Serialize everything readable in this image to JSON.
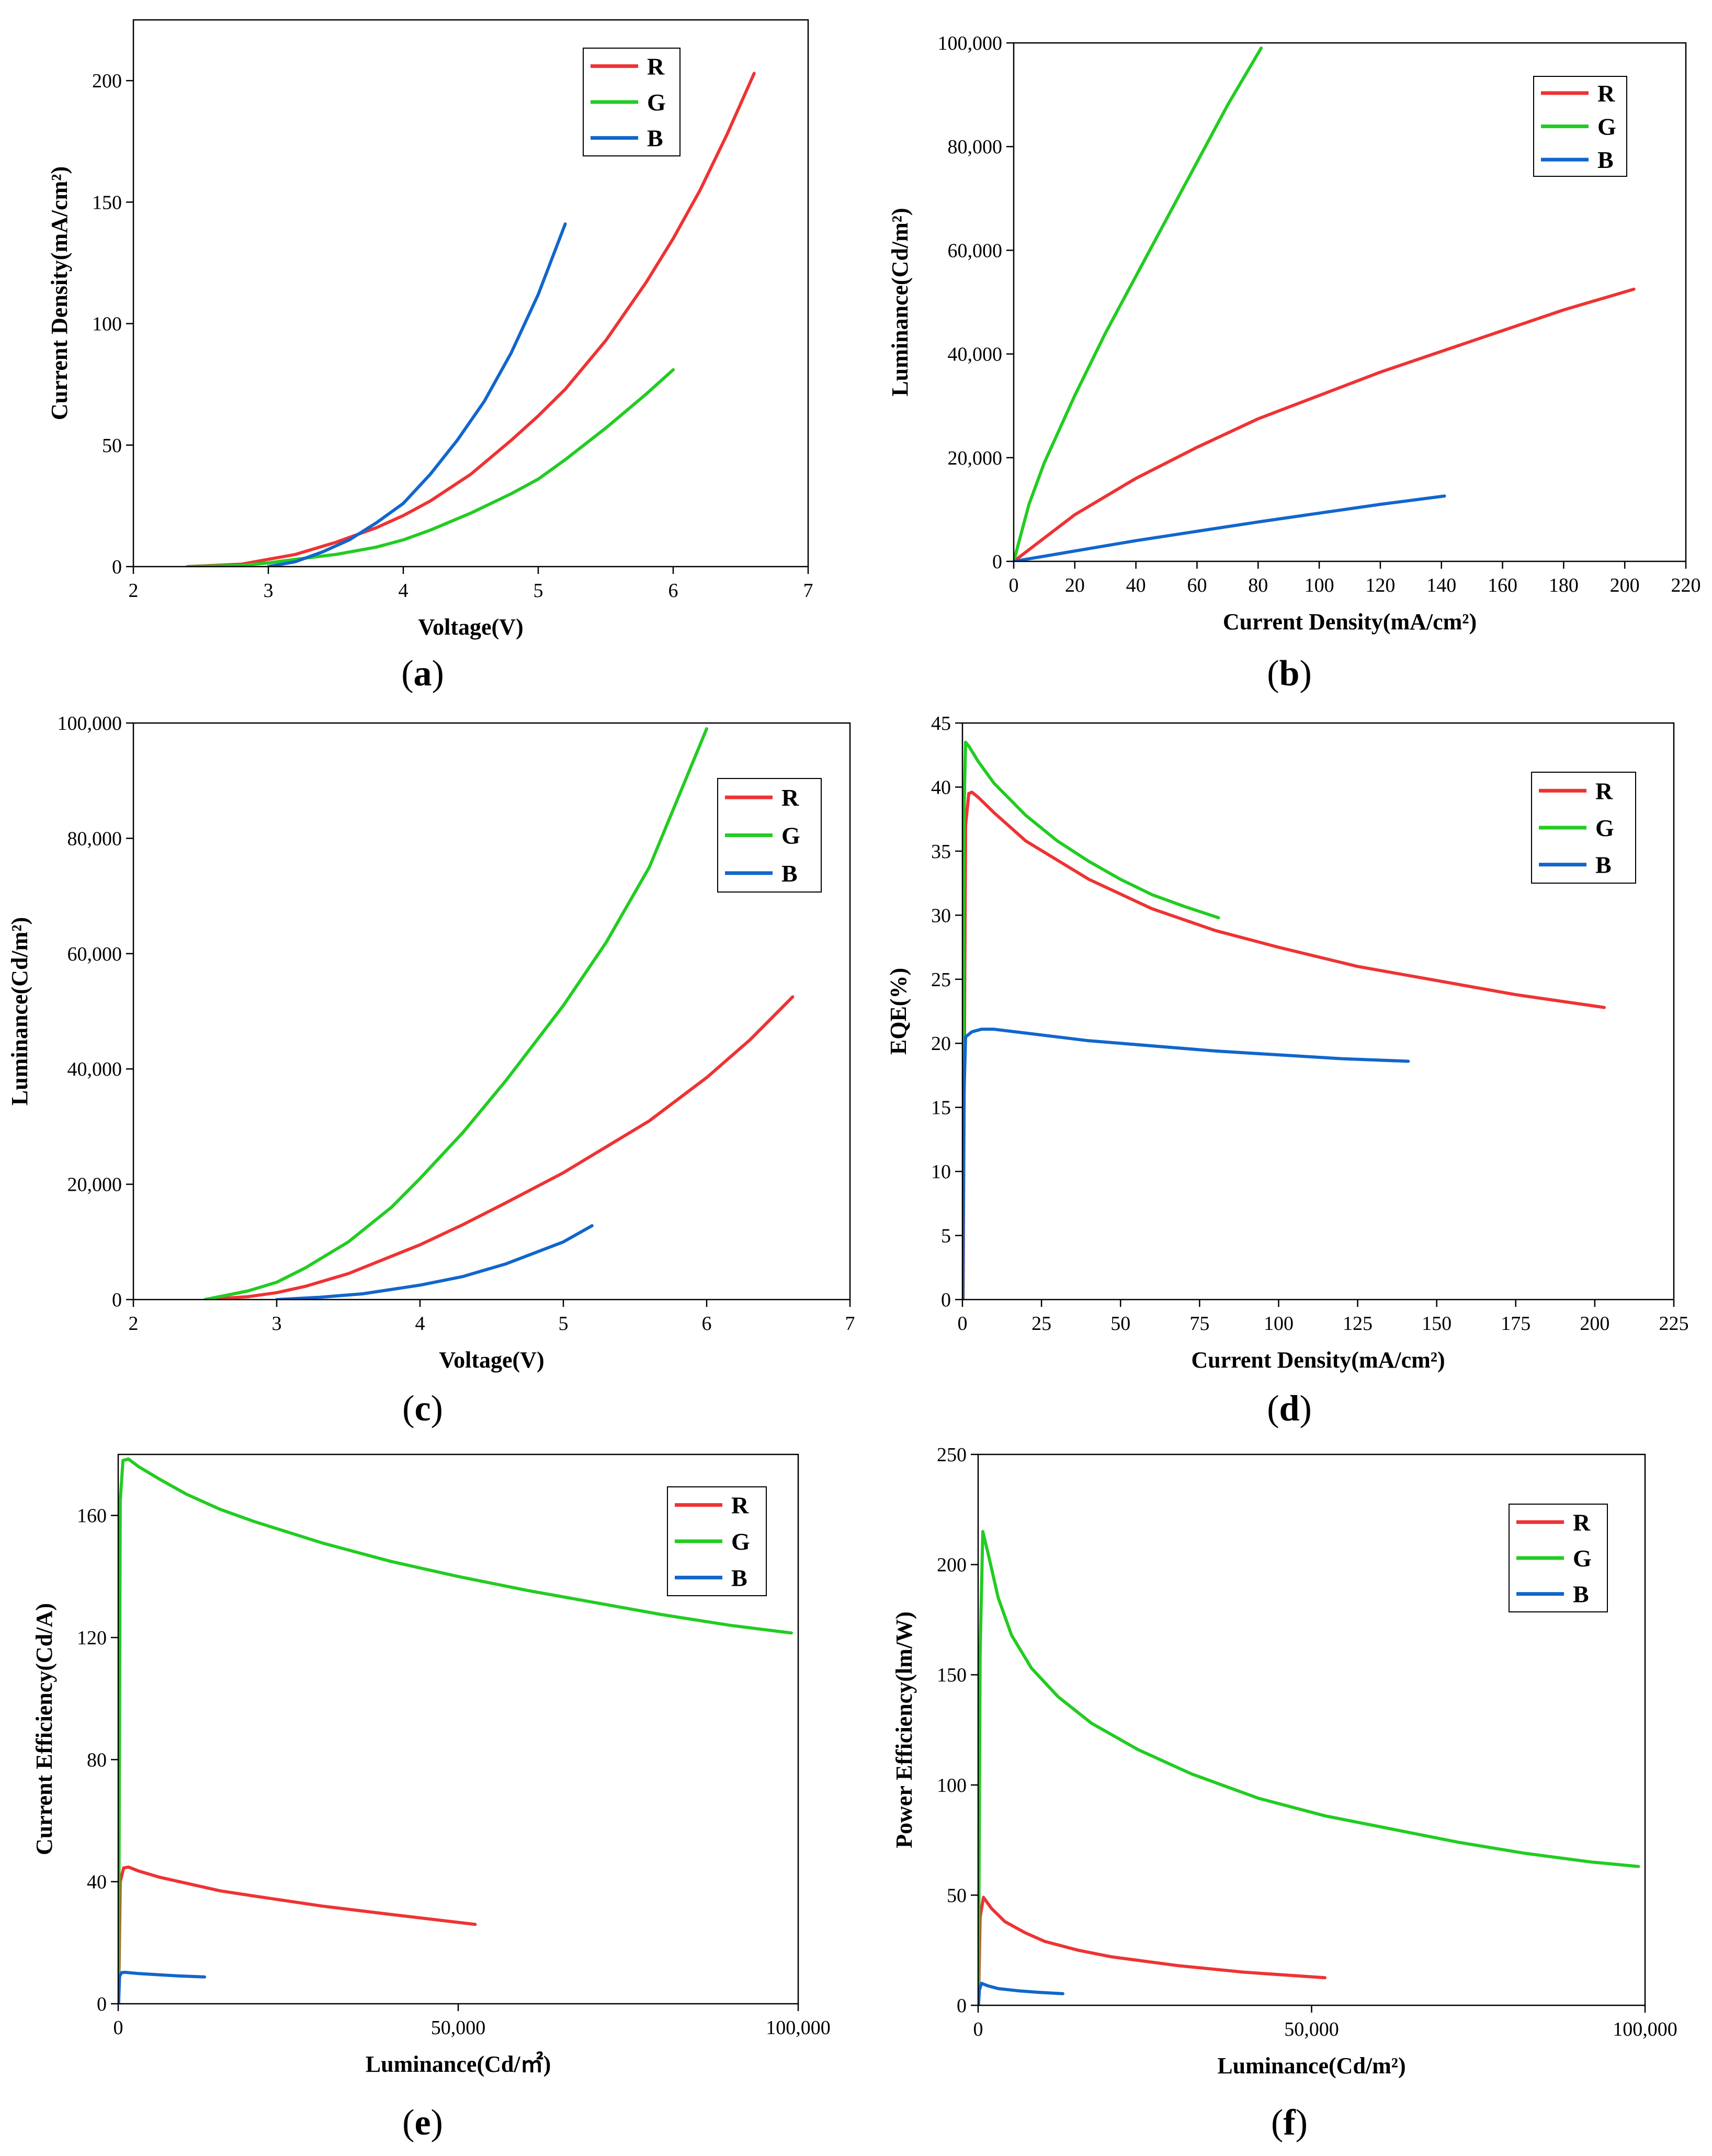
{
  "series_colors": {
    "R": "#ee3333",
    "G": "#22cc22",
    "B": "#1166cc"
  },
  "chart_data": [
    {
      "id": "a",
      "type": "line",
      "panel_label": "a",
      "xlabel": "Voltage(V)",
      "ylabel": "Current Density(mA/cm²)",
      "xlim": [
        2,
        7
      ],
      "ylim": [
        0,
        225
      ],
      "xticks": [
        2,
        3,
        4,
        5,
        6,
        7
      ],
      "xtick_labels": [
        "2",
        "3",
        "4",
        "5",
        "6",
        "7"
      ],
      "yticks": [
        0,
        50,
        100,
        150,
        200
      ],
      "ytick_labels": [
        "0",
        "50",
        "100",
        "150",
        "200"
      ],
      "legend": [
        "R",
        "G",
        "B"
      ],
      "series": [
        {
          "name": "R",
          "x": [
            2.4,
            2.8,
            3.0,
            3.2,
            3.5,
            3.8,
            4.0,
            4.2,
            4.5,
            4.8,
            5.0,
            5.2,
            5.5,
            5.8,
            6.0,
            6.2,
            6.4,
            6.6
          ],
          "y": [
            0,
            1,
            3,
            5,
            10,
            16,
            21,
            27,
            38,
            52,
            62,
            73,
            93,
            117,
            135,
            155,
            178,
            203
          ]
        },
        {
          "name": "G",
          "x": [
            2.4,
            2.8,
            3.0,
            3.2,
            3.5,
            3.8,
            4.0,
            4.2,
            4.5,
            4.8,
            5.0,
            5.2,
            5.5,
            5.8,
            6.0
          ],
          "y": [
            0,
            0.5,
            1.5,
            3,
            5,
            8,
            11,
            15,
            22,
            30,
            36,
            44,
            57,
            71,
            81
          ]
        },
        {
          "name": "B",
          "x": [
            3.0,
            3.2,
            3.4,
            3.6,
            3.8,
            4.0,
            4.2,
            4.4,
            4.6,
            4.8,
            5.0,
            5.2
          ],
          "y": [
            0,
            2,
            6,
            11,
            18,
            26,
            38,
            52,
            68,
            88,
            112,
            141
          ]
        }
      ]
    },
    {
      "id": "b",
      "type": "line",
      "panel_label": "b",
      "xlabel": "Current Density(mA/cm²)",
      "ylabel": "Luminance(Cd/m²)",
      "xlim": [
        0,
        220
      ],
      "ylim": [
        0,
        100000
      ],
      "xticks": [
        0,
        20,
        40,
        60,
        80,
        100,
        120,
        140,
        160,
        180,
        200,
        220
      ],
      "xtick_labels": [
        "0",
        "20",
        "40",
        "60",
        "80",
        "100",
        "120",
        "140",
        "160",
        "180",
        "200",
        "220"
      ],
      "yticks": [
        0,
        20000,
        40000,
        60000,
        80000,
        100000
      ],
      "ytick_labels": [
        "0",
        "20,000",
        "40,000",
        "60,000",
        "80,000",
        "100,000"
      ],
      "legend": [
        "R",
        "G",
        "B"
      ],
      "series": [
        {
          "name": "R",
          "x": [
            0,
            10,
            20,
            40,
            60,
            80,
            100,
            120,
            140,
            160,
            180,
            203
          ],
          "y": [
            0,
            4500,
            9000,
            16000,
            22000,
            27500,
            32000,
            36500,
            40500,
            44500,
            48500,
            52500
          ]
        },
        {
          "name": "G",
          "x": [
            0,
            5,
            10,
            20,
            30,
            40,
            50,
            60,
            70,
            81
          ],
          "y": [
            0,
            11000,
            19000,
            32000,
            44000,
            55000,
            66000,
            77000,
            88000,
            99000
          ]
        },
        {
          "name": "B",
          "x": [
            0,
            20,
            40,
            60,
            80,
            100,
            120,
            141
          ],
          "y": [
            0,
            2000,
            4000,
            5800,
            7600,
            9300,
            11000,
            12600
          ]
        }
      ]
    },
    {
      "id": "c",
      "type": "line",
      "panel_label": "c",
      "xlabel": "Voltage(V)",
      "ylabel": "Luminance(Cd/m²)",
      "xlim": [
        2,
        7
      ],
      "ylim": [
        0,
        100000
      ],
      "xticks": [
        2,
        3,
        4,
        5,
        6,
        7
      ],
      "xtick_labels": [
        "2",
        "3",
        "4",
        "5",
        "6",
        "7"
      ],
      "yticks": [
        0,
        20000,
        40000,
        60000,
        80000,
        100000
      ],
      "ytick_labels": [
        "0",
        "20,000",
        "40,000",
        "60,000",
        "80,000",
        "100,000"
      ],
      "legend": [
        "R",
        "G",
        "B"
      ],
      "series": [
        {
          "name": "R",
          "x": [
            2.5,
            2.8,
            3.0,
            3.2,
            3.5,
            3.8,
            4.0,
            4.3,
            4.6,
            5.0,
            5.3,
            5.6,
            6.0,
            6.3,
            6.6
          ],
          "y": [
            0,
            500,
            1200,
            2300,
            4500,
            7500,
            9500,
            13000,
            16800,
            22000,
            26500,
            31000,
            38500,
            45000,
            52500
          ]
        },
        {
          "name": "G",
          "x": [
            2.5,
            2.8,
            3.0,
            3.2,
            3.5,
            3.8,
            4.0,
            4.3,
            4.6,
            5.0,
            5.3,
            5.6,
            6.0
          ],
          "y": [
            0,
            1500,
            3000,
            5500,
            10000,
            16000,
            21000,
            29000,
            38000,
            51000,
            62000,
            75000,
            99000
          ]
        },
        {
          "name": "B",
          "x": [
            3.0,
            3.3,
            3.6,
            4.0,
            4.3,
            4.6,
            5.0,
            5.2
          ],
          "y": [
            0,
            400,
            1000,
            2500,
            4000,
            6200,
            10000,
            12800
          ]
        }
      ]
    },
    {
      "id": "d",
      "type": "line",
      "panel_label": "d",
      "xlabel": "Current Density(mA/cm²)",
      "ylabel": "EQE(%)",
      "xlim": [
        0,
        225
      ],
      "ylim": [
        0,
        45
      ],
      "xticks": [
        0,
        25,
        50,
        75,
        100,
        125,
        150,
        175,
        200,
        225
      ],
      "xtick_labels": [
        "0",
        "25",
        "50",
        "75",
        "100",
        "125",
        "150",
        "175",
        "200",
        "225"
      ],
      "yticks": [
        0,
        5,
        10,
        15,
        20,
        25,
        30,
        35,
        40,
        45
      ],
      "ytick_labels": [
        "0",
        "5",
        "10",
        "15",
        "20",
        "25",
        "30",
        "35",
        "40",
        "45"
      ],
      "legend": [
        "R",
        "G",
        "B"
      ],
      "series": [
        {
          "name": "R",
          "x": [
            0.2,
            1,
            2,
            3,
            5,
            10,
            20,
            40,
            60,
            80,
            100,
            125,
            150,
            175,
            203
          ],
          "y": [
            0,
            37,
            39.5,
            39.6,
            39.2,
            38,
            35.8,
            32.8,
            30.5,
            28.8,
            27.5,
            26,
            24.9,
            23.8,
            22.8
          ]
        },
        {
          "name": "G",
          "x": [
            0.1,
            0.5,
            1,
            2,
            5,
            10,
            20,
            30,
            40,
            50,
            60,
            70,
            81
          ],
          "y": [
            0,
            38,
            43.5,
            43.2,
            42,
            40.3,
            37.8,
            35.8,
            34.2,
            32.8,
            31.6,
            30.7,
            29.8
          ]
        },
        {
          "name": "B",
          "x": [
            0.1,
            0.5,
            1,
            3,
            6,
            10,
            20,
            40,
            60,
            80,
            100,
            120,
            141
          ],
          "y": [
            0,
            16,
            20.5,
            20.9,
            21.1,
            21.1,
            20.8,
            20.2,
            19.8,
            19.4,
            19.1,
            18.8,
            18.6
          ]
        }
      ]
    },
    {
      "id": "e",
      "type": "line",
      "panel_label": "e",
      "xlabel": "Luminance(Cd/㎡)",
      "ylabel": "Current Efficiency(Cd/A)",
      "xlim": [
        0,
        100000
      ],
      "ylim": [
        0,
        180
      ],
      "xticks": [
        0,
        50000,
        100000
      ],
      "xtick_labels": [
        "0",
        "50,000",
        "100,000"
      ],
      "yticks": [
        0,
        40,
        80,
        120,
        160
      ],
      "ytick_labels": [
        "0",
        "40",
        "80",
        "120",
        "160"
      ],
      "legend": [
        "R",
        "G",
        "B"
      ],
      "series": [
        {
          "name": "R",
          "x": [
            50,
            300,
            800,
            1500,
            3000,
            6000,
            10000,
            15000,
            20000,
            30000,
            40000,
            52500
          ],
          "y": [
            0,
            40,
            44.5,
            44.8,
            43.5,
            41.5,
            39.5,
            37,
            35.3,
            32,
            29.3,
            26
          ]
        },
        {
          "name": "G",
          "x": [
            50,
            300,
            700,
            1500,
            3000,
            6000,
            10000,
            15000,
            20000,
            30000,
            40000,
            50000,
            60000,
            70000,
            80000,
            90000,
            99000
          ],
          "y": [
            0,
            165,
            178,
            178.5,
            176,
            172,
            167,
            162,
            158,
            151,
            145,
            140,
            135.5,
            131.5,
            127.5,
            124,
            121.5
          ]
        },
        {
          "name": "B",
          "x": [
            50,
            200,
            500,
            1000,
            3000,
            6000,
            9000,
            12700
          ],
          "y": [
            0,
            9,
            10.2,
            10.3,
            9.9,
            9.5,
            9.1,
            8.8
          ]
        }
      ]
    },
    {
      "id": "f",
      "type": "line",
      "panel_label": "f",
      "xlabel": "Luminance(Cd/m²)",
      "ylabel": "Power Efficiency(lm/W)",
      "xlim": [
        0,
        100000
      ],
      "ylim": [
        0,
        250
      ],
      "xticks": [
        0,
        50000,
        100000
      ],
      "xtick_labels": [
        "0",
        "50,000",
        "100,000"
      ],
      "yticks": [
        0,
        50,
        100,
        150,
        200,
        250
      ],
      "ytick_labels": [
        "0",
        "50",
        "100",
        "150",
        "200",
        "250"
      ],
      "legend": [
        "R",
        "G",
        "B"
      ],
      "series": [
        {
          "name": "R",
          "x": [
            50,
            300,
            800,
            2000,
            4000,
            7000,
            10000,
            15000,
            20000,
            30000,
            40000,
            52000
          ],
          "y": [
            0,
            40,
            49,
            44,
            38,
            33,
            29,
            25,
            22,
            18,
            15,
            12.5
          ]
        },
        {
          "name": "G",
          "x": [
            50,
            300,
            700,
            1500,
            3000,
            5000,
            8000,
            12000,
            17000,
            24000,
            32000,
            42000,
            52000,
            62000,
            72000,
            82000,
            92000,
            99000
          ],
          "y": [
            0,
            160,
            215,
            205,
            185,
            168,
            153,
            140,
            128,
            116,
            105,
            94,
            86,
            80,
            74,
            69,
            65,
            63
          ]
        },
        {
          "name": "B",
          "x": [
            50,
            200,
            500,
            1500,
            3000,
            6000,
            9000,
            12700
          ],
          "y": [
            0,
            7,
            10,
            8.8,
            7.6,
            6.6,
            5.9,
            5.3
          ]
        }
      ]
    }
  ]
}
